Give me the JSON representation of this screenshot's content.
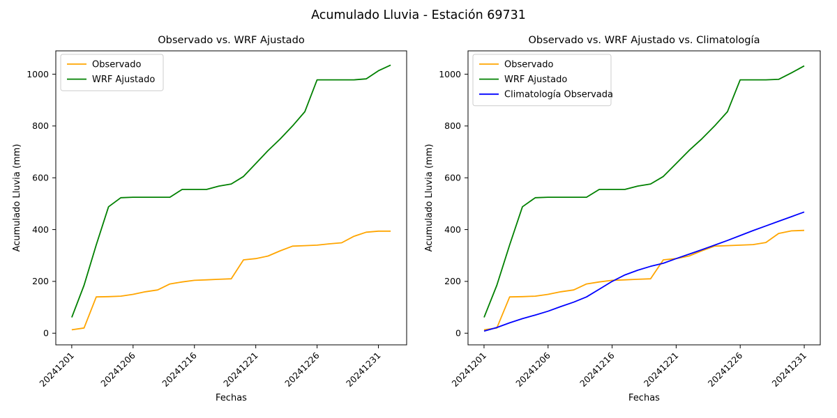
{
  "figure_title": "Acumulado Lluvia - Estación 69731",
  "colors": {
    "observado": "#FFA500",
    "wrf_ajustado": "#008000",
    "climatologia": "#0000FF",
    "axis": "#000000",
    "legend_border": "#cccccc",
    "background": "#ffffff"
  },
  "chart_data": [
    {
      "type": "line",
      "title": "Observado vs. WRF Ajustado",
      "xlabel": "Fechas",
      "ylabel": "Acumulado Lluvia (mm)",
      "yticks": [
        0,
        200,
        400,
        600,
        800,
        1000
      ],
      "ylim_drawn": [
        -45,
        1090
      ],
      "grid": false,
      "legend_position": "upper left",
      "n_points": 27,
      "xtick_indices": [
        0,
        5,
        10,
        15,
        20,
        25
      ],
      "xtick_labels": [
        "20241201",
        "20241206",
        "20241216",
        "20241221",
        "20241226",
        "20241231"
      ],
      "series": [
        {
          "name": "Observado",
          "color": "#FFA500",
          "values": [
            13,
            20,
            140,
            141,
            143,
            150,
            160,
            167,
            190,
            198,
            204,
            206,
            208,
            210,
            283,
            288,
            298,
            318,
            336,
            338,
            340,
            345,
            349,
            374,
            390,
            394,
            394
          ]
        },
        {
          "name": "WRF Ajustado",
          "color": "#008000",
          "values": [
            61,
            185,
            341,
            488,
            523,
            525,
            525,
            525,
            525,
            555,
            555,
            555,
            568,
            576,
            605,
            655,
            705,
            750,
            800,
            855,
            978,
            978,
            978,
            978,
            982,
            1013,
            1035
          ]
        }
      ]
    },
    {
      "type": "line",
      "title": "Observado vs. WRF Ajustado vs. Climatología",
      "xlabel": "Fechas",
      "ylabel": "Acumulado Lluvia (mm)",
      "yticks": [
        0,
        200,
        400,
        600,
        800,
        1000
      ],
      "ylim_drawn": [
        -45,
        1090
      ],
      "grid": false,
      "legend_position": "upper left",
      "n_points": 26,
      "xtick_indices": [
        0,
        5,
        10,
        15,
        20,
        25
      ],
      "xtick_labels": [
        "20241201",
        "20241206",
        "20241216",
        "20241221",
        "20241226",
        "20241231"
      ],
      "series": [
        {
          "name": "Observado",
          "color": "#FFA500",
          "values": [
            13,
            20,
            140,
            141,
            143,
            150,
            160,
            167,
            190,
            198,
            204,
            206,
            208,
            210,
            283,
            288,
            298,
            318,
            336,
            338,
            340,
            342,
            350,
            385,
            395,
            397
          ]
        },
        {
          "name": "WRF Ajustado",
          "color": "#008000",
          "values": [
            61,
            185,
            341,
            488,
            523,
            525,
            525,
            525,
            525,
            555,
            555,
            555,
            568,
            576,
            605,
            655,
            705,
            750,
            800,
            855,
            978,
            978,
            978,
            980,
            1005,
            1032
          ]
        },
        {
          "name": "Climatología Observada",
          "color": "#0000FF",
          "values": [
            8,
            22,
            40,
            56,
            70,
            85,
            103,
            120,
            140,
            170,
            200,
            225,
            243,
            258,
            270,
            288,
            305,
            322,
            340,
            358,
            377,
            396,
            414,
            432,
            450,
            468
          ]
        }
      ]
    }
  ]
}
